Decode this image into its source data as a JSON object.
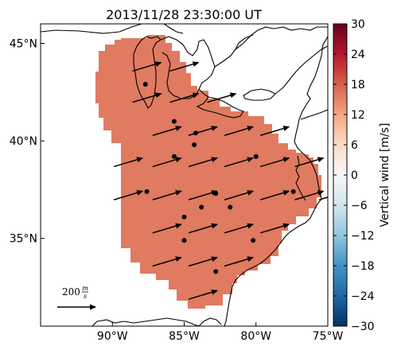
{
  "title": "2013/11/28 23:30:00 UT",
  "map": {
    "lon_range": [
      -95,
      -75
    ],
    "lat_range": [
      30.5,
      46
    ],
    "lon_ticks": [
      {
        "value": -90,
        "label": "90°W"
      },
      {
        "value": -85,
        "label": "85°W"
      },
      {
        "value": -80,
        "label": "80°W"
      },
      {
        "value": -75,
        "label": "75°W"
      }
    ],
    "lat_ticks": [
      {
        "value": 45,
        "label": "45°N"
      },
      {
        "value": 40,
        "label": "40°N"
      },
      {
        "value": 35,
        "label": "35°N"
      }
    ],
    "fill_color": "#e07a60",
    "coast_color": "#000000"
  },
  "scale_arrow": {
    "magnitude": 200,
    "label": "200 m/s",
    "label_num": "200",
    "label_frac_num": "m",
    "label_frac_den": "s"
  },
  "vectors": {
    "u_ms": 150,
    "v_ms": 45,
    "rows": [
      {
        "lat": 43.8,
        "lons": [
          -87.6,
          -85.0
        ]
      },
      {
        "lat": 42.2,
        "lons": [
          -87.6,
          -85.0,
          -82.4
        ]
      },
      {
        "lat": 40.5,
        "lons": [
          -86.2,
          -83.7,
          -81.2,
          -78.7
        ]
      },
      {
        "lat": 38.9,
        "lons": [
          -88.9,
          -86.2,
          -83.7,
          -81.2,
          -78.7,
          -76.3
        ]
      },
      {
        "lat": 37.2,
        "lons": [
          -88.9,
          -86.2,
          -83.7,
          -81.2,
          -78.7,
          -76.3,
          -74.6
        ]
      },
      {
        "lat": 35.5,
        "lons": [
          -86.2,
          -83.7,
          -81.2,
          -78.7
        ]
      },
      {
        "lat": 33.8,
        "lons": [
          -86.2,
          -83.7,
          -81.2
        ]
      },
      {
        "lat": 32.1,
        "lons": [
          -83.7
        ]
      }
    ]
  },
  "stations": [
    {
      "lon": -87.7,
      "lat": 42.9
    },
    {
      "lon": -85.7,
      "lat": 41.0
    },
    {
      "lon": -84.2,
      "lat": 40.4
    },
    {
      "lon": -84.3,
      "lat": 39.8
    },
    {
      "lon": -85.7,
      "lat": 39.2
    },
    {
      "lon": -80.0,
      "lat": 39.2
    },
    {
      "lon": -87.6,
      "lat": 37.4
    },
    {
      "lon": -82.8,
      "lat": 37.3
    },
    {
      "lon": -77.4,
      "lat": 37.4
    },
    {
      "lon": -83.8,
      "lat": 36.6
    },
    {
      "lon": -81.8,
      "lat": 36.6
    },
    {
      "lon": -85.0,
      "lat": 36.1
    },
    {
      "lon": -85.0,
      "lat": 34.9
    },
    {
      "lon": -80.2,
      "lat": 34.9
    },
    {
      "lon": -82.8,
      "lat": 33.3
    }
  ],
  "colorbar": {
    "label": "Vertical wind [m/s]",
    "min": -30,
    "max": 30,
    "ticks": [
      "30",
      "24",
      "18",
      "12",
      "6",
      "0",
      "−6",
      "−12",
      "−18",
      "−24",
      "−30"
    ],
    "colors": [
      "#67001f",
      "#b2182b",
      "#d6604d",
      "#f4a582",
      "#fddbc7",
      "#f7f7f7",
      "#d1e5f0",
      "#92c5de",
      "#4393c3",
      "#2166ac",
      "#053061"
    ]
  }
}
